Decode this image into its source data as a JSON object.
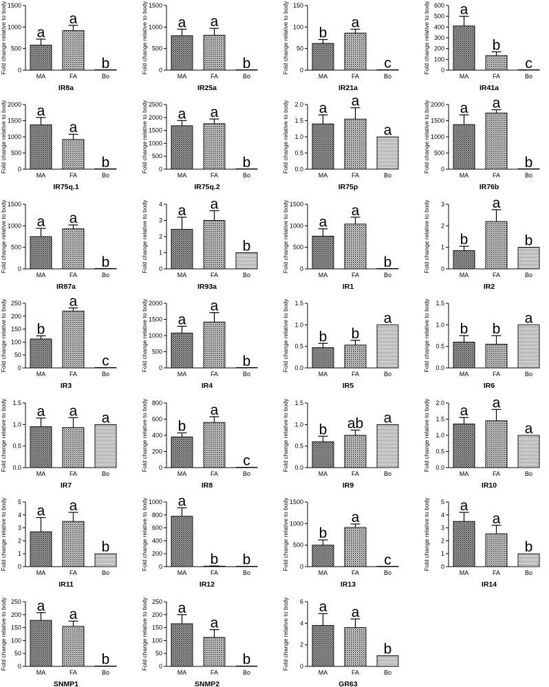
{
  "y_label": "Fold change relative to body",
  "categories": [
    "MA",
    "FA",
    "Bo"
  ],
  "chart_data": [
    {
      "type": "bar",
      "title": "IR8a",
      "categories": [
        "MA",
        "FA",
        "Bo"
      ],
      "values": [
        580,
        920,
        0
      ],
      "errors": [
        140,
        120,
        0
      ],
      "letters": [
        "a",
        "a",
        "b"
      ],
      "ylim": [
        0,
        1500
      ],
      "yticks": [
        0,
        500,
        1000,
        1500
      ]
    },
    {
      "type": "bar",
      "title": "IR25a",
      "categories": [
        "MA",
        "FA",
        "Bo"
      ],
      "values": [
        800,
        810,
        0
      ],
      "errors": [
        150,
        160,
        0
      ],
      "letters": [
        "a",
        "a",
        "b"
      ],
      "ylim": [
        0,
        1500
      ],
      "yticks": [
        0,
        500,
        1000,
        1500
      ]
    },
    {
      "type": "bar",
      "title": "IR21a",
      "categories": [
        "MA",
        "FA",
        "Bo"
      ],
      "values": [
        62,
        86,
        1
      ],
      "errors": [
        9,
        9,
        0
      ],
      "letters": [
        "b",
        "a",
        "c"
      ],
      "ylim": [
        0,
        150
      ],
      "yticks": [
        0,
        50,
        100,
        150
      ]
    },
    {
      "type": "bar",
      "title": "IR41a",
      "categories": [
        "MA",
        "FA",
        "Bo"
      ],
      "values": [
        410,
        135,
        1
      ],
      "errors": [
        90,
        35,
        0
      ],
      "letters": [
        "a",
        "b",
        "c"
      ],
      "ylim": [
        0,
        600
      ],
      "yticks": [
        0,
        100,
        200,
        300,
        400,
        500,
        600
      ]
    },
    {
      "type": "bar",
      "title": "IR75q.1",
      "categories": [
        "MA",
        "FA",
        "Bo"
      ],
      "values": [
        1370,
        920,
        0
      ],
      "errors": [
        230,
        160,
        0
      ],
      "letters": [
        "a",
        "a",
        "b"
      ],
      "ylim": [
        0,
        2000
      ],
      "yticks": [
        0,
        500,
        1000,
        1500,
        2000
      ]
    },
    {
      "type": "bar",
      "title": "IR75q.2",
      "categories": [
        "MA",
        "FA",
        "Bo"
      ],
      "values": [
        1680,
        1760,
        0
      ],
      "errors": [
        200,
        180,
        0
      ],
      "letters": [
        "a",
        "a",
        "b"
      ],
      "ylim": [
        0,
        2500
      ],
      "yticks": [
        0,
        500,
        1000,
        1500,
        2000,
        2500
      ]
    },
    {
      "type": "bar",
      "title": "IR75p",
      "categories": [
        "MA",
        "FA",
        "Bo"
      ],
      "values": [
        1.4,
        1.55,
        1.0
      ],
      "errors": [
        0.28,
        0.35,
        0
      ],
      "letters": [
        "a",
        "a",
        "a"
      ],
      "ylim": [
        0,
        2.0
      ],
      "yticks": [
        0,
        0.5,
        1.0,
        1.5,
        2.0
      ],
      "ytick_labels": [
        "0.0",
        "0.5",
        "1.0",
        "1.5",
        "2.0"
      ]
    },
    {
      "type": "bar",
      "title": "IR76b",
      "categories": [
        "MA",
        "FA",
        "Bo"
      ],
      "values": [
        1380,
        1740,
        0
      ],
      "errors": [
        300,
        100,
        0
      ],
      "letters": [
        "a",
        "a",
        "b"
      ],
      "ylim": [
        0,
        2000
      ],
      "yticks": [
        0,
        500,
        1000,
        1500,
        2000
      ]
    },
    {
      "type": "bar",
      "title": "IR87a",
      "categories": [
        "MA",
        "FA",
        "Bo"
      ],
      "values": [
        750,
        930,
        0
      ],
      "errors": [
        190,
        90,
        0
      ],
      "letters": [
        "a",
        "a",
        "b"
      ],
      "ylim": [
        0,
        1500
      ],
      "yticks": [
        0,
        500,
        1000,
        1500
      ]
    },
    {
      "type": "bar",
      "title": "IR93a",
      "categories": [
        "MA",
        "FA",
        "Bo"
      ],
      "values": [
        2.45,
        3.0,
        1.0
      ],
      "errors": [
        0.75,
        0.6,
        0
      ],
      "letters": [
        "a",
        "a",
        "b"
      ],
      "ylim": [
        0,
        4
      ],
      "yticks": [
        0,
        1,
        2,
        3,
        4
      ]
    },
    {
      "type": "bar",
      "title": "IR1",
      "categories": [
        "MA",
        "FA",
        "Bo"
      ],
      "values": [
        760,
        1040,
        0
      ],
      "errors": [
        170,
        160,
        0
      ],
      "letters": [
        "a",
        "a",
        "b"
      ],
      "ylim": [
        0,
        1500
      ],
      "yticks": [
        0,
        500,
        1000,
        1500
      ]
    },
    {
      "type": "bar",
      "title": "IR2",
      "categories": [
        "MA",
        "FA",
        "Bo"
      ],
      "values": [
        0.85,
        2.2,
        1.0
      ],
      "errors": [
        0.2,
        0.55,
        0
      ],
      "letters": [
        "b",
        "a",
        "b"
      ],
      "ylim": [
        0,
        3
      ],
      "yticks": [
        0,
        1,
        2,
        3
      ]
    },
    {
      "type": "bar",
      "title": "IR3",
      "categories": [
        "MA",
        "FA",
        "Bo"
      ],
      "values": [
        112,
        220,
        1
      ],
      "errors": [
        12,
        12,
        0
      ],
      "letters": [
        "b",
        "a",
        "c"
      ],
      "ylim": [
        0,
        250
      ],
      "yticks": [
        0,
        50,
        100,
        150,
        200,
        250
      ]
    },
    {
      "type": "bar",
      "title": "IR4",
      "categories": [
        "MA",
        "FA",
        "Bo"
      ],
      "values": [
        1080,
        1420,
        0
      ],
      "errors": [
        210,
        290,
        0
      ],
      "letters": [
        "a",
        "a",
        "b"
      ],
      "ylim": [
        0,
        2000
      ],
      "yticks": [
        0,
        500,
        1000,
        1500,
        2000
      ]
    },
    {
      "type": "bar",
      "title": "IR5",
      "categories": [
        "MA",
        "FA",
        "Bo"
      ],
      "values": [
        0.47,
        0.53,
        1.0
      ],
      "errors": [
        0.1,
        0.11,
        0
      ],
      "letters": [
        "b",
        "b",
        "a"
      ],
      "ylim": [
        0,
        1.5
      ],
      "yticks": [
        0,
        0.5,
        1.0,
        1.5
      ],
      "ytick_labels": [
        "0.0",
        "0.5",
        "1.0",
        "1.5"
      ]
    },
    {
      "type": "bar",
      "title": "IR6",
      "categories": [
        "MA",
        "FA",
        "Bo"
      ],
      "values": [
        0.6,
        0.55,
        1.0
      ],
      "errors": [
        0.15,
        0.2,
        0
      ],
      "letters": [
        "b",
        "b",
        "a"
      ],
      "ylim": [
        0,
        1.5
      ],
      "yticks": [
        0,
        0.5,
        1.0,
        1.5
      ],
      "ytick_labels": [
        "0.0",
        "0.5",
        "1.0",
        "1.5"
      ]
    },
    {
      "type": "bar",
      "title": "IR7",
      "categories": [
        "MA",
        "FA",
        "Bo"
      ],
      "values": [
        0.95,
        0.93,
        1.0
      ],
      "errors": [
        0.2,
        0.23,
        0
      ],
      "letters": [
        "a",
        "a",
        "a"
      ],
      "ylim": [
        0,
        1.5
      ],
      "yticks": [
        0,
        0.5,
        1.0,
        1.5
      ],
      "ytick_labels": [
        "0.0",
        "0.5",
        "1.0",
        "1.5"
      ]
    },
    {
      "type": "bar",
      "title": "IR8",
      "categories": [
        "MA",
        "FA",
        "Bo"
      ],
      "values": [
        380,
        560,
        3
      ],
      "errors": [
        50,
        70,
        0
      ],
      "letters": [
        "b",
        "a",
        "c"
      ],
      "ylim": [
        0,
        800
      ],
      "yticks": [
        0,
        200,
        400,
        600,
        800
      ]
    },
    {
      "type": "bar",
      "title": "IR9",
      "categories": [
        "MA",
        "FA",
        "Bo"
      ],
      "values": [
        0.6,
        0.75,
        1.0
      ],
      "errors": [
        0.13,
        0.12,
        0
      ],
      "letters": [
        "b",
        "ab",
        "a"
      ],
      "ylim": [
        0,
        1.5
      ],
      "yticks": [
        0,
        0.5,
        1.0,
        1.5
      ],
      "ytick_labels": [
        "0.0",
        "0.5",
        "1.0",
        "1.5"
      ]
    },
    {
      "type": "bar",
      "title": "IR10",
      "categories": [
        "MA",
        "FA",
        "Bo"
      ],
      "values": [
        1.35,
        1.45,
        1.0
      ],
      "errors": [
        0.2,
        0.35,
        0
      ],
      "letters": [
        "a",
        "a",
        "a"
      ],
      "ylim": [
        0,
        2.0
      ],
      "yticks": [
        0,
        0.5,
        1.0,
        1.5,
        2.0
      ],
      "ytick_labels": [
        "0.0",
        "0.5",
        "1.0",
        "1.5",
        "2.0"
      ]
    },
    {
      "type": "bar",
      "title": "IR11",
      "categories": [
        "MA",
        "FA",
        "Bo"
      ],
      "values": [
        2.7,
        3.5,
        1.0
      ],
      "errors": [
        1.1,
        0.7,
        0
      ],
      "letters": [
        "a",
        "a",
        "b"
      ],
      "ylim": [
        0,
        5
      ],
      "yticks": [
        0,
        1,
        2,
        3,
        4,
        5
      ]
    },
    {
      "type": "bar",
      "title": "IR12",
      "categories": [
        "MA",
        "FA",
        "Bo"
      ],
      "values": [
        780,
        8,
        3
      ],
      "errors": [
        130,
        3,
        0
      ],
      "letters": [
        "a",
        "b",
        "b"
      ],
      "ylim": [
        0,
        1000
      ],
      "yticks": [
        0,
        200,
        400,
        600,
        800,
        1000
      ]
    },
    {
      "type": "bar",
      "title": "IR13",
      "categories": [
        "MA",
        "FA",
        "Bo"
      ],
      "values": [
        500,
        910,
        1
      ],
      "errors": [
        120,
        80,
        0
      ],
      "letters": [
        "b",
        "a",
        "c"
      ],
      "ylim": [
        0,
        1500
      ],
      "yticks": [
        0,
        500,
        1000,
        1500
      ]
    },
    {
      "type": "bar",
      "title": "IR14",
      "categories": [
        "MA",
        "FA",
        "Bo"
      ],
      "values": [
        3.5,
        2.55,
        1.0
      ],
      "errors": [
        0.7,
        0.65,
        0
      ],
      "letters": [
        "a",
        "a",
        "b"
      ],
      "ylim": [
        0,
        5
      ],
      "yticks": [
        0,
        1,
        2,
        3,
        4,
        5
      ]
    },
    {
      "type": "bar",
      "title": "SNMP1",
      "categories": [
        "MA",
        "FA",
        "Bo"
      ],
      "values": [
        178,
        155,
        1
      ],
      "errors": [
        30,
        20,
        0
      ],
      "letters": [
        "a",
        "a",
        "b"
      ],
      "ylim": [
        0,
        250
      ],
      "yticks": [
        0,
        50,
        100,
        150,
        200,
        250
      ]
    },
    {
      "type": "bar",
      "title": "SNMP2",
      "categories": [
        "MA",
        "FA",
        "Bo"
      ],
      "values": [
        165,
        112,
        1
      ],
      "errors": [
        35,
        30,
        0
      ],
      "letters": [
        "a",
        "a",
        "b"
      ],
      "ylim": [
        0,
        250
      ],
      "yticks": [
        0,
        50,
        100,
        150,
        200,
        250
      ]
    },
    {
      "type": "bar",
      "title": "GR63",
      "categories": [
        "MA",
        "FA",
        "Bo"
      ],
      "values": [
        3.8,
        3.6,
        1.0
      ],
      "errors": [
        1.1,
        0.8,
        0
      ],
      "letters": [
        "a",
        "a",
        "b"
      ],
      "ylim": [
        0,
        6
      ],
      "yticks": [
        0,
        2,
        4,
        6
      ]
    }
  ]
}
